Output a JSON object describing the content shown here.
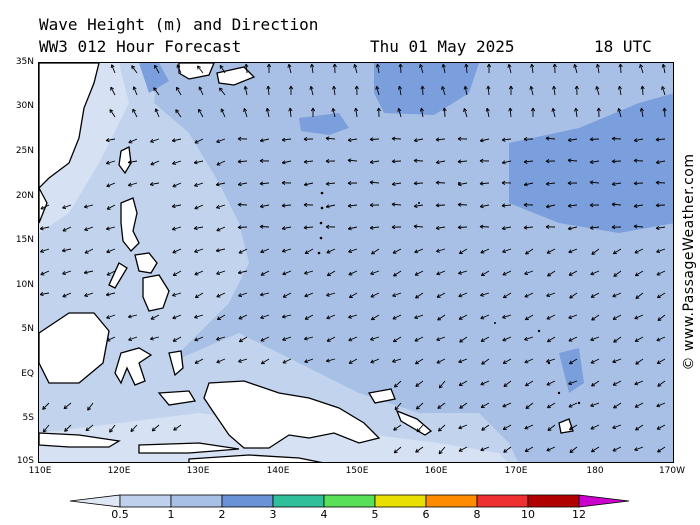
{
  "title": {
    "line1": "Wave Height (m) and Direction",
    "line2_model": "WW3 012 Hour Forecast",
    "line2_date": "Thu 01 May 2025",
    "line2_time": "18 UTC"
  },
  "credit": "© www.PassageWeather.com",
  "axes": {
    "lat_labels": [
      "35N",
      "30N",
      "25N",
      "20N",
      "15N",
      "10N",
      "5N",
      "EQ",
      "5S",
      "10S"
    ],
    "lon_labels": [
      "110E",
      "120E",
      "130E",
      "140E",
      "150E",
      "160E",
      "170E",
      "180",
      "170W"
    ]
  },
  "colorbar": {
    "labels": [
      "0.5",
      "1",
      "2",
      "3",
      "4",
      "5",
      "6",
      "8",
      "10",
      "12"
    ],
    "colors": [
      "#dfe6f4",
      "#bfd0ec",
      "#a9c0e6",
      "#6a92d6",
      "#2fbf9b",
      "#58e058",
      "#e8e000",
      "#ff8c00",
      "#ee3030",
      "#b00000",
      "#cc00cc"
    ]
  },
  "region_colors": {
    "very_low": "#d6e1f3",
    "low": "#c2d3ee",
    "moderate": "#a9c0e6",
    "elevated": "#7a9fdc",
    "land": "#ffffff",
    "coast": "#000000"
  }
}
